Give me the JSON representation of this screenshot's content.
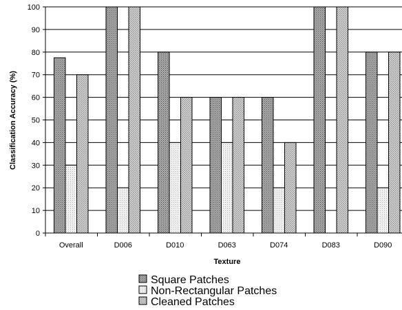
{
  "chart_data": {
    "type": "bar",
    "xlabel": "Texture",
    "ylabel": "Classification Accuracy (%)",
    "ylim": [
      0,
      100
    ],
    "yticks": [
      0,
      10,
      20,
      30,
      40,
      50,
      60,
      70,
      80,
      90,
      100
    ],
    "grid": "horizontal",
    "legend_position": "bottom",
    "categories": [
      "Overall",
      "D006",
      "D010",
      "D063",
      "D074",
      "D083",
      "D090"
    ],
    "series": [
      {
        "name": "Square Patches",
        "values": [
          77.5,
          100,
          80,
          60,
          60,
          100,
          80
        ],
        "color": "#8c8c8c",
        "pattern": "dense-dots"
      },
      {
        "name": "Non-Rectangular Patches",
        "values": [
          30,
          20,
          40,
          40,
          20,
          0,
          20
        ],
        "color": "#e4e4e4",
        "pattern": "light-dots"
      },
      {
        "name": "Cleaned Patches",
        "values": [
          70,
          100,
          60,
          60,
          40,
          100,
          80
        ],
        "color": "#bdbdbd",
        "pattern": "diagonal"
      }
    ]
  }
}
